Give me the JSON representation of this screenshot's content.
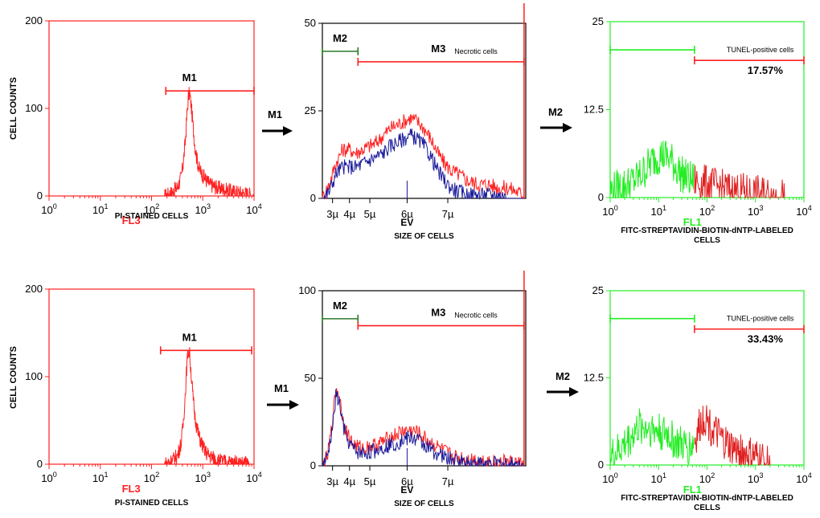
{
  "figure": {
    "ylabel": "CELL COUNTS",
    "arrow_m1": "M1",
    "arrow_m2": "M2",
    "colors": {
      "red": "#ff2020",
      "blue": "#1a1a9a",
      "green": "#22ee22",
      "dark_green": "#2a7a2a",
      "black": "#000000"
    }
  },
  "chart_data": [
    {
      "id": "pi_top",
      "type": "line",
      "row": 0,
      "xlabel": "PI-STAINED CELLS",
      "channel": "FL3",
      "channel_color": "#ff2020",
      "axis_color": "#ff2020",
      "xscale": "log",
      "xlim": [
        1,
        10000
      ],
      "xticks": [
        {
          "b": "10",
          "e": "0"
        },
        {
          "b": "10",
          "e": "1"
        },
        {
          "b": "10",
          "e": "2"
        },
        {
          "b": "10",
          "e": "3"
        },
        {
          "b": "10",
          "e": "4"
        }
      ],
      "ylim": [
        0,
        200
      ],
      "yticks": [
        "0",
        "100",
        "200"
      ],
      "markers": [
        {
          "label": "M1",
          "x1": 190,
          "x2": 10000,
          "y": 120,
          "color": "#ff2020"
        }
      ],
      "series": [
        {
          "name": "PI",
          "color": "#ff2020",
          "x": [
            180,
            250,
            320,
            380,
            420,
            460,
            490,
            520,
            550,
            590,
            640,
            700,
            780,
            860,
            950,
            1050,
            1200,
            1400,
            1700,
            2000,
            2500,
            3000,
            4000,
            5000,
            6500,
            8000,
            10000
          ],
          "y": [
            0,
            4,
            10,
            22,
            40,
            65,
            92,
            112,
            118,
            105,
            82,
            58,
            40,
            30,
            26,
            22,
            17,
            13,
            11,
            9,
            8,
            6,
            5,
            4,
            3,
            2,
            0
          ]
        }
      ]
    },
    {
      "id": "size_top",
      "type": "line",
      "row": 0,
      "xlabel": "SIZE OF CELLS",
      "xlabel_extra": "EV",
      "axis_color": "#000000",
      "xscale": "linear",
      "xlim": [
        2.5,
        8.5
      ],
      "xticks": [
        {
          "t": "3µ",
          "v": 2.8
        },
        {
          "t": "4µ",
          "v": 3.3
        },
        {
          "t": "5µ",
          "v": 3.9
        },
        {
          "t": "6µ",
          "v": 5.0
        },
        {
          "t": "7µ",
          "v": 6.2
        }
      ],
      "ylim": [
        0,
        50
      ],
      "yticks": [
        "0",
        "25",
        "50"
      ],
      "markers": [
        {
          "label": "M2",
          "x1": 2.5,
          "x2": 3.55,
          "y": 42,
          "color": "#2a7a2a"
        },
        {
          "label": "M3",
          "x1": 3.55,
          "x2": 8.45,
          "y": 39,
          "color": "#ff2020",
          "note": "Necrotic cells"
        }
      ],
      "series": [
        {
          "name": "total",
          "color": "#ff2020",
          "x": [
            2.5,
            2.7,
            2.9,
            3.1,
            3.3,
            3.5,
            3.7,
            3.9,
            4.1,
            4.3,
            4.5,
            4.7,
            4.9,
            5.1,
            5.3,
            5.5,
            5.7,
            5.9,
            6.1,
            6.3,
            6.5,
            6.8,
            7.1,
            7.4,
            7.7,
            8.0,
            8.45
          ],
          "y": [
            0,
            4,
            10,
            14,
            14,
            13,
            14,
            15,
            16,
            18,
            20,
            21,
            22,
            23,
            22,
            20,
            17,
            13,
            10,
            8,
            7,
            5,
            4,
            4,
            3,
            3,
            1
          ]
        },
        {
          "name": "EV",
          "color": "#1a1a9a",
          "x": [
            2.5,
            2.7,
            2.9,
            3.1,
            3.3,
            3.5,
            3.7,
            3.9,
            4.1,
            4.3,
            4.5,
            4.7,
            4.9,
            5.1,
            5.3,
            5.5,
            5.7,
            5.9,
            6.1,
            6.3,
            6.5,
            6.8,
            7.1,
            7.4,
            7.7,
            8.0,
            8.45
          ],
          "y": [
            0,
            2,
            7,
            9,
            9,
            9,
            10,
            11,
            12,
            13,
            15,
            16,
            17,
            18,
            17,
            15,
            12,
            8,
            5,
            3,
            2,
            1,
            1,
            1,
            1,
            0,
            0
          ]
        }
      ],
      "extras": {
        "spike_x": 8.45,
        "cross_x": 5.0
      }
    },
    {
      "id": "tunel_top",
      "type": "line",
      "row": 0,
      "xlabel": "FITC-STREPTAVIDIN-BIOTIN-dNTP-LABELED",
      "xlabel2": "CELLS",
      "channel": "FL1",
      "channel_color": "#22ee22",
      "axis_color": "#22ee22",
      "xscale": "log",
      "xlim": [
        1,
        10000
      ],
      "xticks": [
        {
          "b": "10",
          "e": "0"
        },
        {
          "b": "10",
          "e": "1"
        },
        {
          "b": "10",
          "e": "2"
        },
        {
          "b": "10",
          "e": "3"
        },
        {
          "b": "10",
          "e": "4"
        }
      ],
      "ylim": [
        0,
        25
      ],
      "yticks": [
        "0",
        "12.5",
        "25"
      ],
      "markers": [
        {
          "label": "",
          "x1": 1,
          "x2": 55,
          "y": 21,
          "color": "#22ee22"
        },
        {
          "label": "",
          "x1": 55,
          "x2": 10000,
          "y": 19.5,
          "color": "#ff2020",
          "note": "TUNEL-positive cells",
          "percent": "17.57%"
        }
      ],
      "split_x": 55,
      "series": [
        {
          "name": "FL1",
          "color": "#22ee22",
          "x": [
            1,
            1.6,
            2.5,
            4,
            6,
            8,
            10,
            13,
            17,
            22,
            28,
            35,
            45,
            55,
            70,
            90,
            120,
            160,
            220,
            300,
            400,
            550,
            750,
            1000,
            1500,
            2200,
            3000,
            4000
          ],
          "y": [
            1,
            1.5,
            2,
            3,
            4.5,
            5.5,
            6,
            6,
            5.5,
            4.5,
            3.5,
            3,
            2.5,
            2.5,
            2,
            2,
            1.8,
            1.5,
            1.3,
            1,
            1,
            0.8,
            0.6,
            0.5,
            0.4,
            0.3,
            0.2,
            0
          ]
        }
      ]
    },
    {
      "id": "pi_bot",
      "type": "line",
      "row": 1,
      "xlabel": "PI-STAINED CELLS",
      "channel": "FL3",
      "channel_color": "#ff2020",
      "axis_color": "#ff2020",
      "xscale": "log",
      "xlim": [
        1,
        10000
      ],
      "xticks": [
        {
          "b": "10",
          "e": "0"
        },
        {
          "b": "10",
          "e": "1"
        },
        {
          "b": "10",
          "e": "2"
        },
        {
          "b": "10",
          "e": "3"
        },
        {
          "b": "10",
          "e": "4"
        }
      ],
      "ylim": [
        0,
        200
      ],
      "yticks": [
        "0",
        "100",
        "200"
      ],
      "markers": [
        {
          "label": "M1",
          "x1": 150,
          "x2": 9000,
          "y": 130,
          "color": "#ff2020"
        }
      ],
      "series": [
        {
          "name": "PI",
          "color": "#ff2020",
          "x": [
            180,
            250,
            320,
            380,
            420,
            460,
            490,
            520,
            550,
            590,
            640,
            700,
            780,
            860,
            950,
            1050,
            1200,
            1400,
            1700,
            2000,
            2500,
            3000,
            4000,
            5000,
            6500,
            8000,
            10000
          ],
          "y": [
            0,
            4,
            10,
            25,
            50,
            85,
            115,
            130,
            128,
            105,
            78,
            55,
            40,
            30,
            24,
            17,
            12,
            9,
            6,
            4,
            3,
            2,
            2,
            1,
            1,
            0,
            0
          ]
        }
      ]
    },
    {
      "id": "size_bot",
      "type": "line",
      "row": 1,
      "xlabel": "SIZE OF CELLS",
      "xlabel_extra": "EV",
      "axis_color": "#000000",
      "xscale": "linear",
      "xlim": [
        2.5,
        8.5
      ],
      "xticks": [
        {
          "t": "3µ",
          "v": 2.8
        },
        {
          "t": "4µ",
          "v": 3.3
        },
        {
          "t": "5µ",
          "v": 3.9
        },
        {
          "t": "6µ",
          "v": 5.0
        },
        {
          "t": "7µ",
          "v": 6.2
        }
      ],
      "ylim": [
        0,
        100
      ],
      "yticks": [
        "0",
        "50",
        "100"
      ],
      "markers": [
        {
          "label": "M2",
          "x1": 2.5,
          "x2": 3.55,
          "y": 84,
          "color": "#2a7a2a"
        },
        {
          "label": "M3",
          "x1": 3.55,
          "x2": 8.45,
          "y": 80,
          "color": "#ff2020",
          "note": "Necrotic cells"
        }
      ],
      "series": [
        {
          "name": "total",
          "color": "#ff2020",
          "x": [
            2.5,
            2.65,
            2.8,
            2.9,
            3.0,
            3.1,
            3.2,
            3.35,
            3.5,
            3.7,
            3.9,
            4.1,
            4.3,
            4.5,
            4.7,
            4.9,
            5.1,
            5.3,
            5.5,
            5.8,
            6.1,
            6.4,
            6.8,
            7.2,
            7.6,
            8.0,
            8.45
          ],
          "y": [
            0,
            5,
            25,
            45,
            40,
            28,
            20,
            14,
            11,
            10,
            11,
            12,
            14,
            16,
            18,
            20,
            20,
            19,
            16,
            12,
            8,
            5,
            4,
            3,
            2,
            2,
            1
          ]
        },
        {
          "name": "EV",
          "color": "#1a1a9a",
          "x": [
            2.5,
            2.65,
            2.8,
            2.9,
            3.0,
            3.1,
            3.2,
            3.35,
            3.5,
            3.7,
            3.9,
            4.1,
            4.3,
            4.5,
            4.7,
            4.9,
            5.1,
            5.3,
            5.5,
            5.8,
            6.1,
            6.4,
            6.8,
            7.2,
            7.6,
            8.0,
            8.45
          ],
          "y": [
            0,
            4,
            22,
            40,
            36,
            24,
            16,
            11,
            8,
            7,
            8,
            9,
            11,
            12,
            13,
            15,
            16,
            15,
            12,
            8,
            5,
            3,
            2,
            1,
            1,
            1,
            0
          ]
        }
      ],
      "extras": {
        "spike_x": 8.45,
        "cross_x": 5.0
      }
    },
    {
      "id": "tunel_bot",
      "type": "line",
      "row": 1,
      "xlabel": "FITC-STREPTAVIDIN-BIOTIN-dNTP-LABELED",
      "xlabel2": "CELLS",
      "channel": "FL1",
      "channel_color": "#22ee22",
      "axis_color": "#22ee22",
      "xscale": "log",
      "xlim": [
        1,
        10000
      ],
      "xticks": [
        {
          "b": "10",
          "e": "0"
        },
        {
          "b": "10",
          "e": "1"
        },
        {
          "b": "10",
          "e": "2"
        },
        {
          "b": "10",
          "e": "3"
        },
        {
          "b": "10",
          "e": "4"
        }
      ],
      "ylim": [
        0,
        25
      ],
      "yticks": [
        "0",
        "12.5",
        "25"
      ],
      "markers": [
        {
          "label": "",
          "x1": 1,
          "x2": 55,
          "y": 21,
          "color": "#22ee22"
        },
        {
          "label": "",
          "x1": 55,
          "x2": 10000,
          "y": 19.5,
          "color": "#ff2020",
          "note": "TUNEL-positive cells",
          "percent": "33.43%"
        }
      ],
      "split_x": 55,
      "series": [
        {
          "name": "FL1",
          "color": "#22ee22",
          "x": [
            1,
            1.5,
            2,
            3,
            4,
            5,
            6,
            8,
            10,
            12,
            15,
            20,
            25,
            30,
            40,
            50,
            60,
            70,
            80,
            90,
            100,
            120,
            150,
            200,
            300,
            400,
            600,
            1000,
            1500,
            2000
          ],
          "y": [
            1,
            2,
            3,
            4.5,
            5.5,
            5.5,
            5.5,
            5,
            5,
            4.5,
            4.5,
            3.5,
            3,
            2.8,
            2.5,
            3,
            4,
            5.5,
            6.5,
            7,
            6.5,
            5.5,
            4.5,
            3.5,
            2.5,
            2,
            1.5,
            1,
            0.5,
            0
          ]
        }
      ]
    }
  ]
}
